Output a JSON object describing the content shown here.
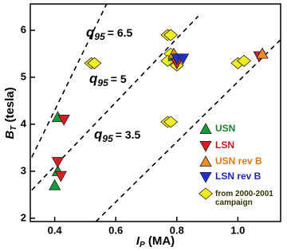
{
  "chart_data": {
    "type": "scatter",
    "xlabel": {
      "main": "I",
      "sub": "P",
      "rest": " (MA)"
    },
    "ylabel": {
      "main": "B",
      "sub": "T",
      "rest": " (tesla)"
    },
    "xlim": [
      0.32,
      1.14
    ],
    "ylim": [
      1.93,
      6.56
    ],
    "xticks": [
      0.4,
      0.6,
      0.8,
      {
        "value": 1,
        "label": "1.0"
      }
    ],
    "yticks": [
      2,
      3,
      4,
      5,
      6
    ],
    "series": [
      {
        "name": "USN",
        "color": "#1a9a3a",
        "text_color": "#1a8a30",
        "marker": "triangle-up",
        "x": [
          0.4,
          0.41,
          0.41,
          0.79,
          1.08
        ],
        "values": [
          2.7,
          3.0,
          4.15,
          5.45,
          5.5
        ]
      },
      {
        "name": "LSN",
        "color": "#d42020",
        "text_color": "#c01818",
        "marker": "triangle-down",
        "x": [
          0.41,
          0.42,
          0.43,
          0.8,
          1.07
        ],
        "values": [
          3.2,
          2.9,
          4.1,
          5.3,
          5.45
        ]
      },
      {
        "name": "USN rev B",
        "color": "#f08c20",
        "text_color": "#e07810",
        "marker": "triangle-up",
        "x": [
          0.79,
          1.08
        ],
        "values": [
          5.5,
          5.5
        ]
      },
      {
        "name": "LSN rev B",
        "color": "#2030c8",
        "text_color": "#1a28b0",
        "marker": "triangle-down",
        "x": [
          0.8,
          0.82
        ],
        "values": [
          5.4,
          5.4
        ]
      },
      {
        "name": "from 2000-2001 campaign",
        "color": "#f0f020",
        "text_color": "#333300",
        "marker": "diamond",
        "x": [
          0.52,
          0.53,
          0.77,
          0.78,
          0.77,
          0.78,
          0.78,
          0.8,
          1.0,
          1.02,
          0.77
        ],
        "values": [
          5.3,
          5.3,
          5.9,
          5.9,
          4.05,
          4.05,
          5.5,
          5.25,
          5.3,
          5.35,
          5.35
        ]
      }
    ],
    "q_lines": [
      {
        "q": "q",
        "sub": "95",
        "text": "= 6.5",
        "x": [
          0.325,
          0.57
        ],
        "y": [
          3.3,
          6.56
        ]
      },
      {
        "q": "q",
        "sub": "95",
        "text": "= 5",
        "x": [
          0.325,
          0.87
        ],
        "y": [
          2.6,
          6.3
        ]
      },
      {
        "q": "q",
        "sub": "95",
        "text": "= 3.5",
        "x": [
          0.535,
          1.14
        ],
        "y": [
          1.93,
          5.8
        ]
      }
    ]
  }
}
